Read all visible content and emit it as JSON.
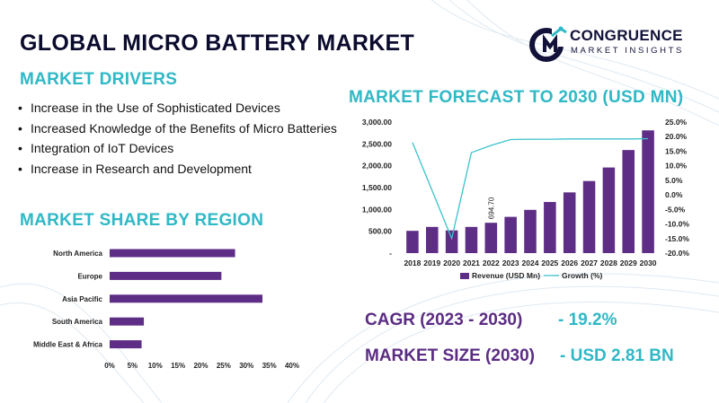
{
  "header": {
    "title": "GLOBAL MICRO BATTERY MARKET",
    "logo_name": "CONGRUENCE",
    "logo_tagline": "MARKET INSIGHTS"
  },
  "drivers": {
    "heading": "MARKET DRIVERS",
    "items": [
      "Increase in the Use of Sophisticated Devices",
      "Increased Knowledge of the Benefits of Micro Batteries",
      "Integration of IoT Devices",
      "Increase in Research and Development"
    ]
  },
  "region": {
    "heading": "MARKET SHARE BY REGION"
  },
  "forecast": {
    "heading": "MARKET FORECAST TO 2030 (USD MN)"
  },
  "stats": {
    "cagr_label": "CAGR (2023 - 2030)",
    "cagr_value": "- 19.2%",
    "size_label": "MARKET SIZE (2030)",
    "size_value": "- USD 2.81 BN"
  },
  "colors": {
    "purple": "#5b2c83",
    "teal": "#2fb8c6",
    "bar": "#5e2e86",
    "line": "#3cc2cc"
  },
  "chart_data": [
    {
      "type": "bar",
      "orientation": "horizontal",
      "categories": [
        "North America",
        "Europe",
        "Asia Pacific",
        "South America",
        "Middle East & Africa"
      ],
      "values": [
        27.5,
        24.5,
        33.5,
        7.5,
        7.0
      ],
      "xlim": [
        0,
        40
      ],
      "xticks": [
        "0%",
        "5%",
        "10%",
        "15%",
        "20%",
        "25%",
        "30%",
        "35%",
        "40%"
      ],
      "xtick_values": [
        0,
        5,
        10,
        15,
        20,
        25,
        30,
        35,
        40
      ]
    },
    {
      "type": "bar",
      "categories": [
        "2018",
        "2019",
        "2020",
        "2021",
        "2022",
        "2023",
        "2024",
        "2025",
        "2026",
        "2027",
        "2028",
        "2029",
        "2030"
      ],
      "series": [
        {
          "name": "Revenue (USD Mn)",
          "kind": "bar",
          "axis": "left",
          "values": [
            510,
            600,
            520,
            600,
            694.7,
            830,
            990,
            1170,
            1390,
            1650,
            1960,
            2360,
            2810
          ]
        },
        {
          "name": "Growth (%)",
          "kind": "line",
          "axis": "right",
          "values": [
            18.0,
            null,
            -15.0,
            14.5,
            17.0,
            19.0,
            19.1,
            19.1,
            19.2,
            19.2,
            19.2,
            19.2,
            19.3
          ]
        }
      ],
      "data_labels": [
        {
          "category": "2022",
          "text": "694.70"
        }
      ],
      "ylim": [
        0,
        3000
      ],
      "yticks": [
        "-",
        "500.00",
        "1,000.00",
        "1,500.00",
        "2,000.00",
        "2,500.00",
        "3,000.00"
      ],
      "ytick_values": [
        0,
        500,
        1000,
        1500,
        2000,
        2500,
        3000
      ],
      "y2lim": [
        -20,
        25
      ],
      "y2ticks": [
        "-20.0%",
        "-15.0%",
        "-10.0%",
        "-5.0%",
        "0.0%",
        "5.0%",
        "10.0%",
        "15.0%",
        "20.0%",
        "25.0%"
      ],
      "y2tick_values": [
        -20,
        -15,
        -10,
        -5,
        0,
        5,
        10,
        15,
        20,
        25
      ],
      "legend": "bottom"
    }
  ]
}
